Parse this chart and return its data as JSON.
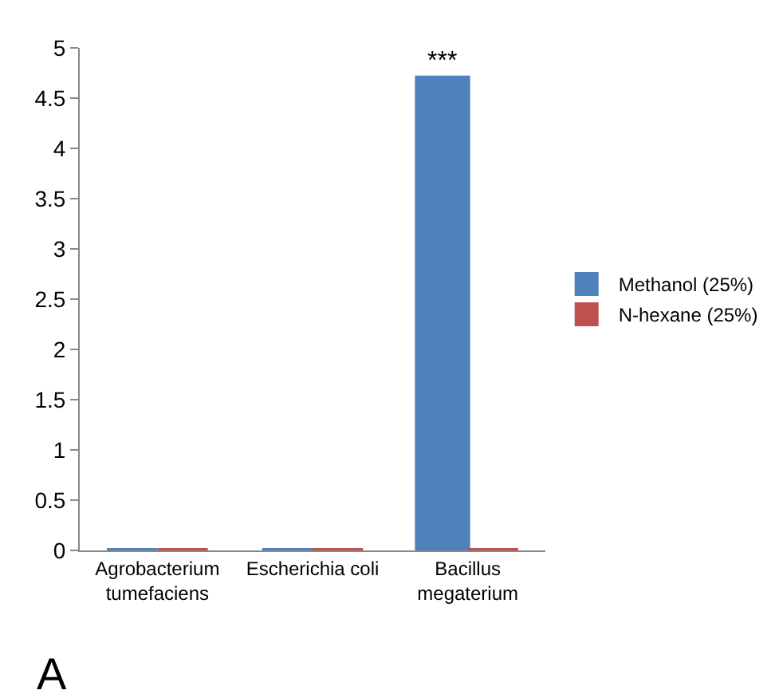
{
  "chart_data": {
    "type": "bar",
    "categories": [
      "Agrobacterium tumefaciens",
      "Escherichia coli",
      "Bacillus megaterium"
    ],
    "series": [
      {
        "name": "Methanol (25%)",
        "color": "#4f81bd",
        "values": [
          0,
          0,
          4.7
        ]
      },
      {
        "name": "N-hexane (25%)",
        "color": "#c0504d",
        "values": [
          0,
          0,
          0
        ]
      }
    ],
    "ylim": [
      0,
      5
    ],
    "yticks": [
      0,
      0.5,
      1,
      1.5,
      2,
      2.5,
      3,
      3.5,
      4,
      4.5,
      5
    ],
    "legend": "right",
    "annotations": [
      {
        "text": "***",
        "x": "Bacillus megaterium",
        "y": 4.7
      },
      "A"
    ]
  }
}
